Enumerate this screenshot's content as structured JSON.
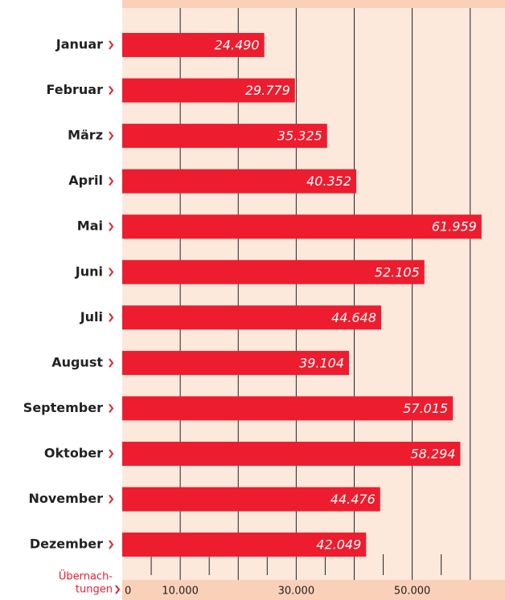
{
  "chart_data": {
    "type": "bar",
    "orientation": "horizontal",
    "categories": [
      "Januar",
      "Februar",
      "März",
      "April",
      "Mai",
      "Juni",
      "Juli",
      "August",
      "September",
      "Oktober",
      "November",
      "Dezember"
    ],
    "values": [
      24490,
      29779,
      35325,
      40352,
      61959,
      52105,
      44648,
      39104,
      57015,
      58294,
      44476,
      42049
    ],
    "value_labels": [
      "24.490",
      "29.779",
      "35.325",
      "40.352",
      "61.959",
      "52.105",
      "44.648",
      "39.104",
      "57.015",
      "58.294",
      "44.476",
      "42.049"
    ],
    "color": "#ed1c2e",
    "x_label_lines": [
      "Übernach-",
      "tungen"
    ],
    "xlim": [
      0,
      66000
    ],
    "xticks": [
      0,
      {
        "value": 10000,
        "label": "10.000"
      },
      {
        "value": 30000,
        "label": "30.000"
      },
      {
        "value": 50000,
        "label": "50.000"
      }
    ],
    "gridlines": [
      10000,
      20000,
      30000,
      40000,
      50000,
      60000
    ],
    "minor_ticks": [
      5000,
      15000,
      25000,
      35000,
      45000,
      55000
    ]
  }
}
